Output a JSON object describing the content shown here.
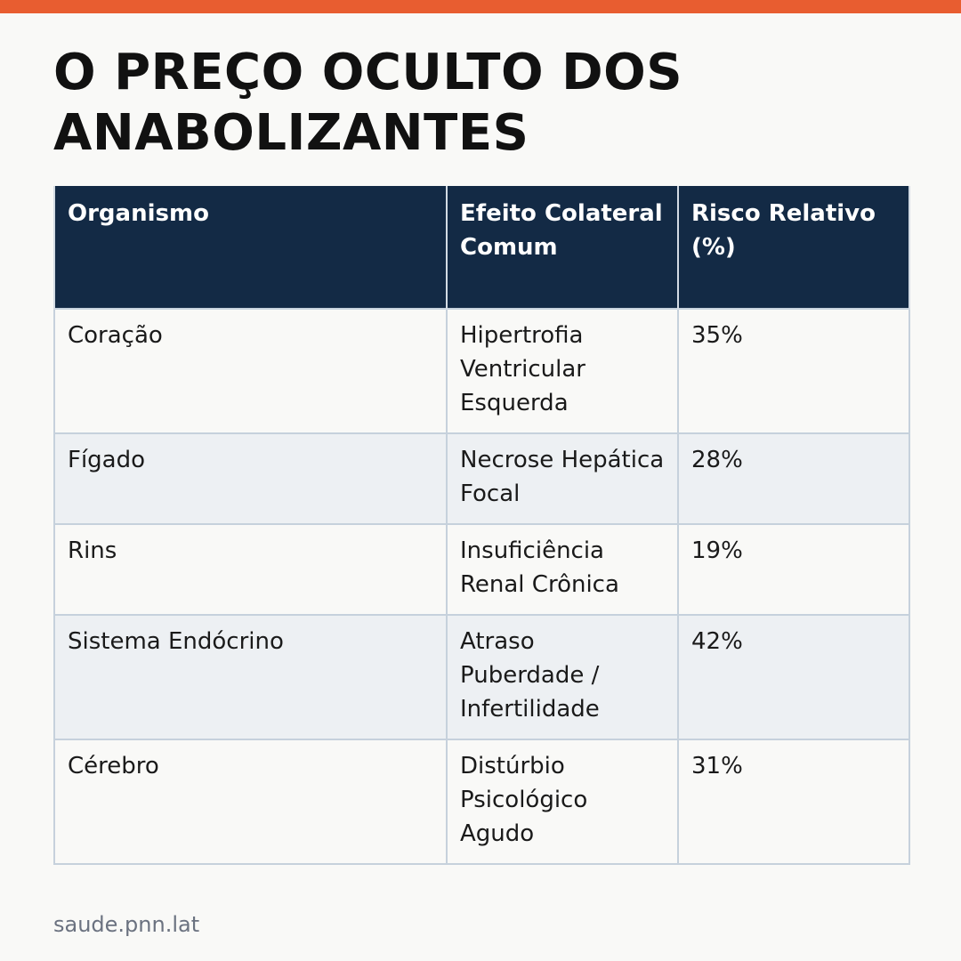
{
  "colors": {
    "accent_bar": "#e85d30",
    "header_background": "#132a45",
    "row_alt_background": "#edf0f3",
    "background": "#f9f9f7"
  },
  "title": "O PREÇO OCULTO DOS ANABOLIZANTES",
  "table": {
    "headers": [
      "Organismo",
      "Efeito Colateral Comum",
      "Risco Relativo (%)"
    ],
    "rows": [
      {
        "organ": "Coração",
        "effect": "Hipertrofia Ventricular Esquerda",
        "risk": "35%"
      },
      {
        "organ": "Fígado",
        "effect": "Necrose Hepática Focal",
        "risk": "28%"
      },
      {
        "organ": "Rins",
        "effect": "Insuficiência Renal Crônica",
        "risk": "19%"
      },
      {
        "organ": "Sistema Endócrino",
        "effect": "Atraso Puberdade / Infertilidade",
        "risk": "42%"
      },
      {
        "organ": "Cérebro",
        "effect": "Distúrbio Psicológico Agudo",
        "risk": "31%"
      }
    ]
  },
  "footer": "saude.pnn.lat"
}
